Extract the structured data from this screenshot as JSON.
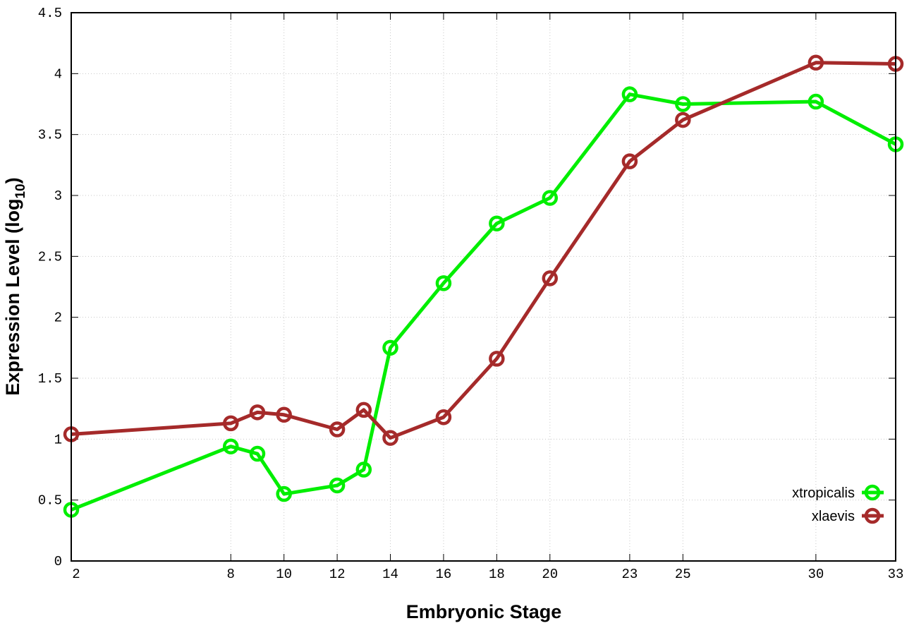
{
  "chart_data": {
    "type": "line",
    "title": "",
    "xlabel": "Embryonic Stage",
    "ylabel_main": "Expression Level (log",
    "ylabel_sub": "10",
    "ylabel_close": ")",
    "xlim": [
      2,
      33
    ],
    "ylim": [
      0,
      4.5
    ],
    "x_ticks": [
      2,
      8,
      10,
      12,
      14,
      16,
      18,
      20,
      23,
      25,
      30,
      33
    ],
    "y_ticks": [
      0,
      0.5,
      1,
      1.5,
      2,
      2.5,
      3,
      3.5,
      4,
      4.5
    ],
    "y_tick_labels": [
      "0",
      "0.5",
      "1",
      "1.5",
      "2",
      "2.5",
      "3",
      "3.5",
      "4",
      "4.5"
    ],
    "grid": true,
    "legend_position": "bottom-right",
    "x": [
      2,
      8,
      9,
      10,
      12,
      13,
      14,
      16,
      18,
      20,
      23,
      25,
      30,
      33
    ],
    "series": [
      {
        "name": "xtropicalis",
        "color": "#00ee00",
        "values": [
          0.42,
          0.94,
          0.88,
          0.55,
          0.62,
          0.75,
          1.75,
          2.28,
          2.77,
          2.98,
          3.83,
          3.75,
          3.77,
          3.42
        ]
      },
      {
        "name": "xlaevis",
        "color": "#a52a2a",
        "values": [
          1.04,
          1.13,
          1.22,
          1.2,
          1.08,
          1.24,
          1.01,
          1.18,
          1.66,
          2.32,
          3.28,
          3.62,
          4.09,
          4.08
        ]
      }
    ]
  }
}
